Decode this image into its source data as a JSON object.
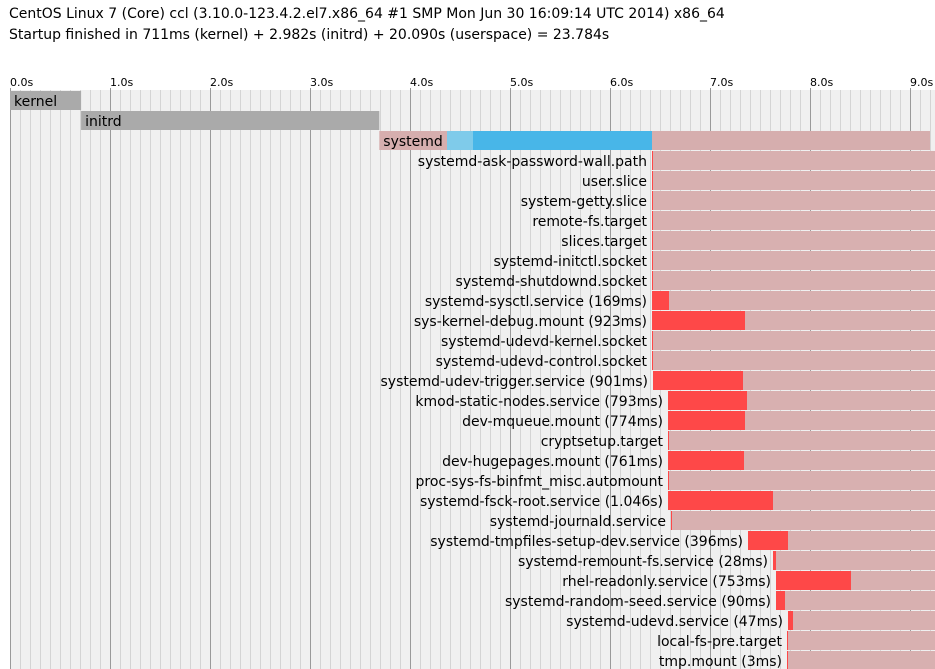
{
  "header": {
    "system_line": "CentOS Linux 7 (Core) ccl (3.10.0-123.4.2.el7.x86_64 #1 SMP Mon Jun 30 16:09:14 UTC 2014) x86_64",
    "startup_line": "Startup finished in 711ms (kernel) + 2.982s (initrd) + 20.090s (userspace) = 23.784s"
  },
  "colors": {
    "background": "#ffffff",
    "grid_bg": "#f0f0f0",
    "grid_minor": "#d4d4d4",
    "grid_major": "#9a9a9a",
    "kernel": "#aaaaaa",
    "initrd": "#aaaaaa",
    "systemd": "#d6aeae",
    "activating": "#fe4848",
    "active": "#d8b0b0",
    "setup": "#7fcbea",
    "generators": "#48b6e8"
  },
  "chart_data": {
    "type": "gantt",
    "title": "systemd-analyze plot",
    "x_unit": "s",
    "x_range": [
      0,
      9.2
    ],
    "ticks": [
      "0.0s",
      "1.0s",
      "2.0s",
      "3.0s",
      "4.0s",
      "5.0s",
      "6.0s",
      "7.0s",
      "8.0s",
      "9.0s"
    ],
    "phases": [
      {
        "name": "kernel",
        "label": "kernel",
        "start": 0.0,
        "end": 0.711
      },
      {
        "name": "initrd",
        "label": "initrd",
        "start": 0.711,
        "end": 3.693
      },
      {
        "name": "systemd",
        "label": "systemd",
        "start": 3.693,
        "end": 9.2,
        "setup": [
          4.37,
          4.63
        ],
        "generators": [
          4.63,
          6.42
        ]
      }
    ],
    "units": [
      {
        "label": "systemd-ask-password-wall.path",
        "start": 6.42,
        "act": 6.42,
        "active": 6.42
      },
      {
        "label": "user.slice",
        "start": 6.42,
        "act": 6.42,
        "active": 6.42
      },
      {
        "label": "system-getty.slice",
        "start": 6.42,
        "act": 6.42,
        "active": 6.42
      },
      {
        "label": "remote-fs.target",
        "start": 6.42,
        "act": 6.42,
        "active": 6.42
      },
      {
        "label": "slices.target",
        "start": 6.42,
        "act": 6.42,
        "active": 6.42
      },
      {
        "label": "systemd-initctl.socket",
        "start": 6.42,
        "act": 6.42,
        "active": 6.42
      },
      {
        "label": "systemd-shutdownd.socket",
        "start": 6.42,
        "act": 6.42,
        "active": 6.42
      },
      {
        "label": "systemd-sysctl.service (169ms)",
        "start": 6.42,
        "act": 6.42,
        "active": 6.59
      },
      {
        "label": "sys-kernel-debug.mount (923ms)",
        "start": 6.42,
        "act": 6.42,
        "active": 7.35
      },
      {
        "label": "systemd-udevd-kernel.socket",
        "start": 6.42,
        "act": 6.42,
        "active": 6.42
      },
      {
        "label": "systemd-udevd-control.socket",
        "start": 6.42,
        "act": 6.42,
        "active": 6.42
      },
      {
        "label": "systemd-udev-trigger.service (901ms)",
        "start": 6.43,
        "act": 6.43,
        "active": 7.33
      },
      {
        "label": "kmod-static-nodes.service (793ms)",
        "start": 6.58,
        "act": 6.58,
        "active": 7.37
      },
      {
        "label": "dev-mqueue.mount (774ms)",
        "start": 6.58,
        "act": 6.58,
        "active": 7.35
      },
      {
        "label": "cryptsetup.target",
        "start": 6.58,
        "act": 6.58,
        "active": 6.58
      },
      {
        "label": "dev-hugepages.mount (761ms)",
        "start": 6.58,
        "act": 6.58,
        "active": 7.34
      },
      {
        "label": "proc-sys-fs-binfmt_misc.automount",
        "start": 6.58,
        "act": 6.58,
        "active": 6.58
      },
      {
        "label": "systemd-fsck-root.service (1.046s)",
        "start": 6.58,
        "act": 6.58,
        "active": 7.63
      },
      {
        "label": "systemd-journald.service",
        "start": 6.61,
        "act": 6.61,
        "active": 6.61
      },
      {
        "label": "systemd-tmpfiles-setup-dev.service (396ms)",
        "start": 7.38,
        "act": 7.38,
        "active": 7.78
      },
      {
        "label": "systemd-remount-fs.service (28ms)",
        "start": 7.63,
        "act": 7.63,
        "active": 7.66
      },
      {
        "label": "rhel-readonly.service (753ms)",
        "start": 7.66,
        "act": 7.66,
        "active": 8.41
      },
      {
        "label": "systemd-random-seed.service (90ms)",
        "start": 7.66,
        "act": 7.66,
        "active": 7.75
      },
      {
        "label": "systemd-udevd.service (47ms)",
        "start": 7.78,
        "act": 7.78,
        "active": 7.83
      },
      {
        "label": "local-fs-pre.target",
        "start": 7.77,
        "act": 7.77,
        "active": 7.77
      },
      {
        "label": "tmp.mount (3ms)",
        "start": 7.77,
        "act": 7.77,
        "active": 7.77
      }
    ]
  }
}
